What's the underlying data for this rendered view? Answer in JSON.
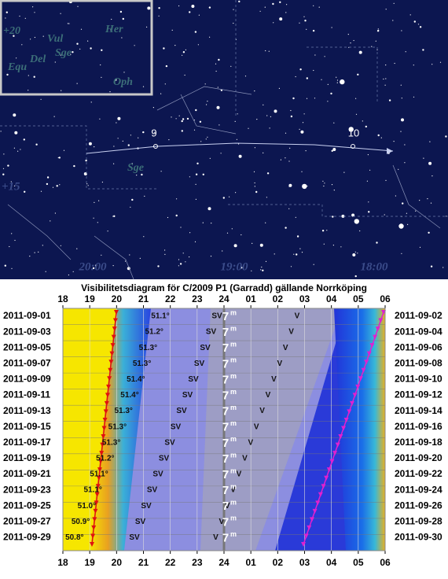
{
  "star_map": {
    "constellations": [
      "Vul",
      "Her",
      "Del",
      "Sge",
      "Equ",
      "Oph",
      "Sge"
    ],
    "declination_labels": [
      "+20",
      "+15"
    ],
    "comet_dates": [
      "9",
      "10"
    ],
    "time_labels": [
      "20:00",
      "19:00",
      "18:00"
    ]
  },
  "diagram": {
    "title": "Visibilitetsdiagram för C/2009 P1 (Garradd) gällande Norrköping",
    "hours": [
      "18",
      "19",
      "20",
      "21",
      "22",
      "23",
      "24",
      "01",
      "02",
      "03",
      "04",
      "05",
      "06"
    ],
    "magnitude": "7",
    "magnitude_unit": "m",
    "rows": [
      {
        "left_date": "2011-09-01",
        "right_date": "2011-09-02",
        "altitude": "51.1°",
        "direction_1": "SV",
        "direction_2": "V"
      },
      {
        "left_date": "2011-09-03",
        "right_date": "2011-09-04",
        "altitude": "51.2°",
        "direction_1": "SV",
        "direction_2": "V"
      },
      {
        "left_date": "2011-09-05",
        "right_date": "2011-09-06",
        "altitude": "51.3°",
        "direction_1": "SV",
        "direction_2": "V"
      },
      {
        "left_date": "2011-09-07",
        "right_date": "2011-09-08",
        "altitude": "51.3°",
        "direction_1": "SV",
        "direction_2": "V"
      },
      {
        "left_date": "2011-09-09",
        "right_date": "2011-09-10",
        "altitude": "51.4°",
        "direction_1": "SV",
        "direction_2": "V"
      },
      {
        "left_date": "2011-09-11",
        "right_date": "2011-09-12",
        "altitude": "51.4°",
        "direction_1": "SV",
        "direction_2": "V"
      },
      {
        "left_date": "2011-09-13",
        "right_date": "2011-09-14",
        "altitude": "51.3°",
        "direction_1": "SV",
        "direction_2": "V"
      },
      {
        "left_date": "2011-09-15",
        "right_date": "2011-09-16",
        "altitude": "51.3°",
        "direction_1": "SV",
        "direction_2": "V"
      },
      {
        "left_date": "2011-09-17",
        "right_date": "2011-09-18",
        "altitude": "51.3°",
        "direction_1": "SV",
        "direction_2": "V"
      },
      {
        "left_date": "2011-09-19",
        "right_date": "2011-09-20",
        "altitude": "51.2°",
        "direction_1": "SV",
        "direction_2": "V"
      },
      {
        "left_date": "2011-09-21",
        "right_date": "2011-09-22",
        "altitude": "51.1°",
        "direction_1": "SV",
        "direction_2": "V"
      },
      {
        "left_date": "2011-09-23",
        "right_date": "2011-09-24",
        "altitude": "51.1°",
        "direction_1": "SV",
        "direction_2": "V"
      },
      {
        "left_date": "2011-09-25",
        "right_date": "2011-09-26",
        "altitude": "51.0°",
        "direction_1": "SV",
        "direction_2": "V"
      },
      {
        "left_date": "2011-09-27",
        "right_date": "2011-09-28",
        "altitude": "50.9°",
        "direction_1": "SV",
        "direction_2": "V"
      },
      {
        "left_date": "2011-09-29",
        "right_date": "2011-09-30",
        "altitude": "50.8°",
        "direction_1": "SV",
        "direction_2": "V"
      }
    ]
  }
}
